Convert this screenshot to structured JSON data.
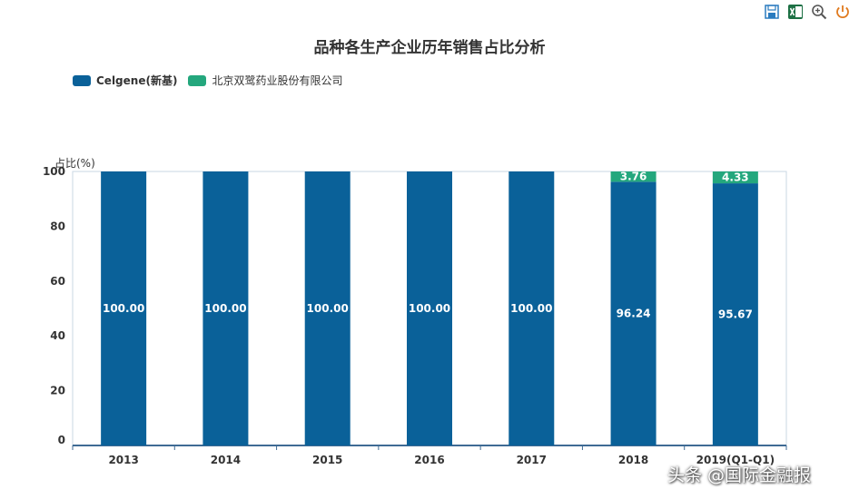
{
  "toolbar": {
    "icons": [
      "save-icon",
      "excel-export-icon",
      "zoom-icon",
      "power-icon"
    ]
  },
  "chart_data": {
    "type": "bar",
    "stacked": true,
    "title": "品种各生产企业历年销售占比分析",
    "ylabel": "占比(%)",
    "xlabel": "",
    "categories": [
      "2013",
      "2014",
      "2015",
      "2016",
      "2017",
      "2018",
      "2019(Q1-Q1)"
    ],
    "series": [
      {
        "name": "Celgene(新基)",
        "color": "#0a6199",
        "values": [
          100.0,
          100.0,
          100.0,
          100.0,
          100.0,
          96.24,
          95.67
        ],
        "labels": [
          "100.00",
          "100.00",
          "100.00",
          "100.00",
          "100.00",
          "96.24",
          "95.67"
        ]
      },
      {
        "name": "北京双鹭药业股份有限公司",
        "color": "#24a77d",
        "values": [
          0,
          0,
          0,
          0,
          0,
          3.76,
          4.33
        ],
        "labels": [
          "",
          "",
          "",
          "",
          "",
          "3.76",
          "4.33"
        ]
      }
    ],
    "yticks": [
      0,
      20,
      40,
      60,
      80,
      100
    ],
    "ylim": [
      0,
      100
    ],
    "legend_position": "top-left",
    "grid": false
  },
  "watermark": "头条 @国际金融报"
}
